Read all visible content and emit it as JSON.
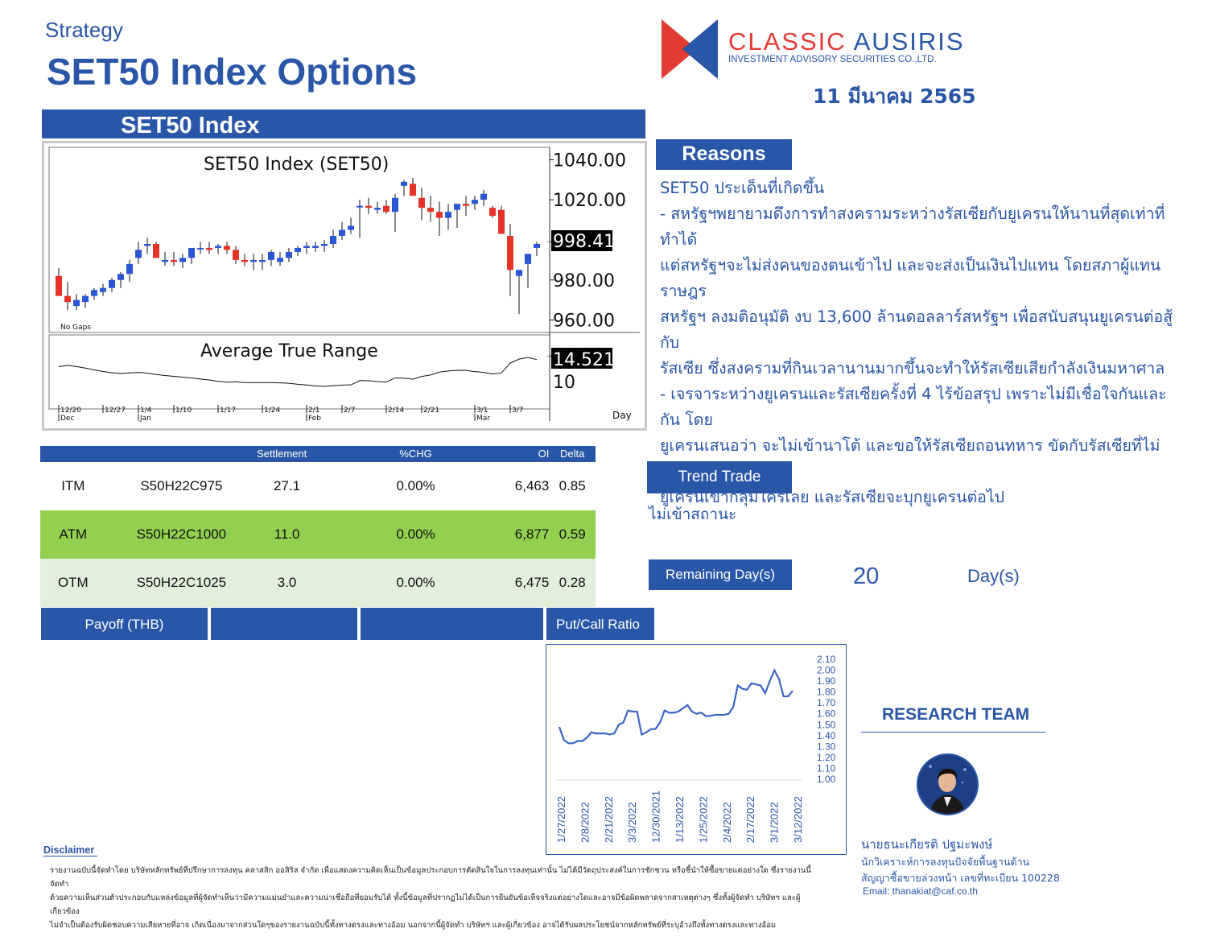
{
  "header": {
    "strategy": "Strategy",
    "title": "SET50 Index Options",
    "company_name_part1": "CLASSIC ",
    "company_name_part2": "AUSIRIS",
    "company_sub": "INVESTMENT ADVISORY SECURITIES CO.,LTD.",
    "date": "11 มีนาคม 2565",
    "brand_colors": {
      "red": "#e23b33",
      "blue": "#2a56a7"
    }
  },
  "index_chart": {
    "panel_title": "SET50 Index",
    "title": "SET50  Index  (SET50)",
    "no_gaps": "No  Gaps",
    "atr_title": "Average  True  Range",
    "last_price": "998.41",
    "last_atr": "14.521",
    "price_ticks": [
      "1040.00",
      "1020.00",
      "980.00",
      "960.00"
    ],
    "atr_tick": "10",
    "day_label": "Day",
    "date_ticks": [
      "12/20",
      "12/27",
      "1/4",
      "1/10",
      "1/17",
      "1/24",
      "2/1",
      "2/7",
      "2/14",
      "2/21",
      "3/1",
      "3/7"
    ],
    "month_labels": [
      "Dec",
      "Jan",
      "Feb",
      "Mar"
    ]
  },
  "chart_data": [
    {
      "type": "candlestick",
      "title": "SET50  Index  (SET50)",
      "x": [
        "12/20",
        "12/21",
        "12/22",
        "12/23",
        "12/24",
        "12/27",
        "12/28",
        "12/29",
        "12/30",
        "1/4",
        "1/5",
        "1/6",
        "1/7",
        "1/10",
        "1/11",
        "1/12",
        "1/13",
        "1/14",
        "1/17",
        "1/18",
        "1/19",
        "1/20",
        "1/21",
        "1/24",
        "1/25",
        "1/26",
        "1/27",
        "1/28",
        "2/1",
        "2/2",
        "2/3",
        "2/4",
        "2/7",
        "2/8",
        "2/9",
        "2/10",
        "2/11",
        "2/14",
        "2/15",
        "2/17",
        "2/18",
        "2/21",
        "2/22",
        "2/23",
        "2/24",
        "2/25",
        "2/28",
        "3/1",
        "3/2",
        "3/3",
        "3/4",
        "3/7",
        "3/8",
        "3/9",
        "3/10"
      ],
      "series": [
        {
          "field": "open",
          "values": [
            982,
            972,
            967,
            969,
            972,
            974,
            976,
            980,
            983,
            991,
            997,
            998,
            989,
            990,
            989,
            991,
            996,
            996,
            996,
            997,
            995,
            990,
            989,
            989,
            990,
            989,
            991,
            994,
            996,
            996,
            997,
            998,
            1002,
            1005,
            1017,
            1017,
            1015,
            1017,
            1014,
            1027,
            1028,
            1021,
            1016,
            1014,
            1011,
            1015,
            1018,
            1018,
            1020,
            1016,
            1015,
            1002,
            982,
            988,
            996
          ],
          "high": [
            986,
            979,
            973,
            973,
            976,
            978,
            981,
            984,
            990,
            999,
            1001,
            999,
            994,
            994,
            993,
            995,
            999,
            999,
            998,
            999,
            997,
            993,
            993,
            993,
            995,
            994,
            996,
            997,
            999,
            999,
            1000,
            1005,
            1009,
            1011,
            1020,
            1021,
            1019,
            1020,
            1023,
            1030,
            1031,
            1026,
            1022,
            1019,
            1018,
            1018,
            1022,
            1022,
            1025,
            1017,
            1017,
            1008,
            985,
            993,
            999
          ],
          "low": [
            975,
            965,
            965,
            966,
            970,
            972,
            974,
            976,
            979,
            988,
            993,
            993,
            987,
            987,
            986,
            988,
            993,
            993,
            993,
            993,
            988,
            987,
            985,
            985,
            987,
            987,
            989,
            992,
            993,
            994,
            994,
            996,
            1000,
            1003,
            1001,
            1013,
            1013,
            1013,
            1004,
            1022,
            1025,
            1010,
            1009,
            1002,
            1005,
            1006,
            1012,
            1015,
            1017,
            1011,
            1005,
            972,
            963,
            976,
            992
          ],
          "close": [
            972,
            969,
            970,
            972,
            975,
            976,
            980,
            983,
            988,
            995,
            998,
            991,
            990,
            989,
            991,
            996,
            996,
            995,
            997,
            995,
            990,
            989,
            990,
            990,
            994,
            991,
            994,
            996,
            997,
            997,
            998,
            1002,
            1005,
            1007,
            1017,
            1016,
            1016,
            1014,
            1021,
            1029,
            1022,
            1016,
            1014,
            1011,
            1014,
            1018,
            1017,
            1020,
            1023,
            1012,
            1003,
            985,
            985,
            993,
            998
          ]
        }
      ],
      "last": 998.41,
      "ylim": [
        955,
        1045
      ]
    },
    {
      "type": "line",
      "title": "Average  True  Range",
      "last": 14.521,
      "y_tick": 10
    },
    {
      "type": "line",
      "title": "",
      "x_ticks": [
        "1/27/2022",
        "2/8/2022",
        "2/21/2022",
        "3/3/2022",
        "12/30/2021",
        "1/13/2022",
        "1/25/2022",
        "2/4/2022",
        "2/17/2022",
        "3/1/2022",
        "3/12/2022"
      ],
      "y_ticks": [
        "2.10",
        "2.00",
        "1.90",
        "1.80",
        "1.70",
        "1.60",
        "1.50",
        "1.40",
        "1.30",
        "1.20",
        "1.10",
        "1.00"
      ],
      "ylim": [
        1.0,
        2.1
      ],
      "values": [
        1.48,
        1.36,
        1.33,
        1.33,
        1.35,
        1.35,
        1.38,
        1.43,
        1.42,
        1.42,
        1.42,
        1.41,
        1.42,
        1.5,
        1.52,
        1.63,
        1.62,
        1.62,
        1.41,
        1.43,
        1.46,
        1.46,
        1.52,
        1.63,
        1.61,
        1.61,
        1.62,
        1.65,
        1.68,
        1.62,
        1.6,
        1.61,
        1.58,
        1.58,
        1.59,
        1.59,
        1.59,
        1.6,
        1.66,
        1.86,
        1.83,
        1.82,
        1.88,
        1.87,
        1.86,
        1.79,
        1.9,
        2.0,
        1.92,
        1.76,
        1.76,
        1.81
      ]
    }
  ],
  "reasons": {
    "header": "Reasons",
    "lines": [
      "SET50 ประเด็นที่เกิดขึ้น",
      "- สหรัฐฯพยายามดึงการทำสงครามระหว่างรัสเซียกับยูเครนให้นานที่สุดเท่าที่ทำได้",
      "แต่สหรัฐฯจะไม่ส่งคนของตนเข้าไป และจะส่งเป็นเงินไปแทน โดยสภาผู้แทนราษฎร",
      "สหรัฐฯ ลงมติอนุมัติ งบ 13,600 ล้านดอลลาร์สหรัฐฯ เพื่อสนับสนุนยูเครนต่อสู้กับ",
      "รัสเซีย ซึ่งสงครามที่กินเวลานานมากขึ้นจะทำให้รัสเซียเสียกำลังเงินมหาศาล",
      "- เจรจาระหว่างยูเครนและรัสเซียครั้งที่ 4 ไร้ข้อสรุป เพราะไม่มีเชื่อใจกันและกัน โดย",
      "ยูเครนเสนอว่า จะไม่เข้านาโต้ และขอให้รัสเซียถอนทหาร ขัดกับรัสเซียที่ไม่อยากให้",
      "ยูเครนเข้ากลุ่มใครเลย และรัสเซียจะบุกยูเครนต่อไป"
    ]
  },
  "options_table": {
    "headers": [
      "",
      "",
      "Settlement",
      "%CHG",
      "OI",
      "Delta"
    ],
    "rows": [
      {
        "type": "ITM",
        "series": "S50H22C975",
        "settlement": "27.1",
        "chg": "0.00%",
        "oi": "6,463",
        "delta": "0.85",
        "color": "#ffffff"
      },
      {
        "type": "ATM",
        "series": "S50H22C1000",
        "settlement": "11.0",
        "chg": "0.00%",
        "oi": "6,877",
        "delta": "0.59",
        "color": "#92d050"
      },
      {
        "type": "OTM",
        "series": "S50H22C1025",
        "settlement": "3.0",
        "chg": "0.00%",
        "oi": "6,475",
        "delta": "0.28",
        "color": "#e2efda"
      }
    ]
  },
  "trend": {
    "header": "Trend Trade",
    "value": "ไม่เข้าสถานะ"
  },
  "remaining": {
    "header": "Remaining Day(s)",
    "value": "20",
    "unit": "Day(s)"
  },
  "bottom_bars": {
    "payoff": "Payoff (THB)",
    "pcr": "Put/Call Ratio"
  },
  "research": {
    "title": "RESEARCH TEAM",
    "name": "นายธนะเกียรติ ปฐมะพงษ์",
    "role": "นักวิเคราะห์การลงทุนปัจจัยพื้นฐานด้าน",
    "license": "สัญญาซื้อขายล่วงหน้า เลขที่ทะเบียน 100228",
    "email": "Email: thanakiat@caf.co.th"
  },
  "disclaimer": {
    "title": "Disclaimer",
    "lines": [
      "รายงานฉบับนี้จัดทำโดย บริษัทหลักทรัพย์ที่ปรึกษาการลงทุน คลาสสิก ออสิริส จำกัด เพื่อแสดงความคิดเห็นเป็นข้อมูลประกอบการตัดสินใจในการลงทุนเท่านั้น ไม่ได้มีวัตถุประสงค์ในการชักชวน หรือชี้นำให้ซื้อขายแต่อย่างใด ซึ่งรายงานนี้ จัดทำ",
      "ด้วยความเห็นส่วนตัวประกอบกับแหล่งข้อมูลที่ผู้จัดทำเห็นว่ามีความแม่นยำและความน่าเชื่อถือที่ยอมรับได้ ทั้งนี้ข้อมูลที่ปรากฏไม่ได้เป็นการยืนยันข้อเท็จจริงแต่อย่างใดและอาจมีข้อผิดพลาดจากสาเหตุต่างๆ ซึ่งทั้งผู้จัดทำ บริษัทฯ และผู้เกี่ยวข้อง",
      "ไม่จำเป็นต้องรับผิดชอบความเสียหายที่อาจ เกิดเนื่องมาจากส่วนใดๆของรายงานฉบับนี้ทั้งทางตรงและทางอ้อม นอกจากนี้ผู้จัดทำ บริษัทฯ และผู้เกี่ยวข้อง อาจได้รับผลประโยชน์จากหลักทรัพย์ที่ระบุอ้างถึงทั้งทางตรงและทางอ้อม"
    ]
  }
}
